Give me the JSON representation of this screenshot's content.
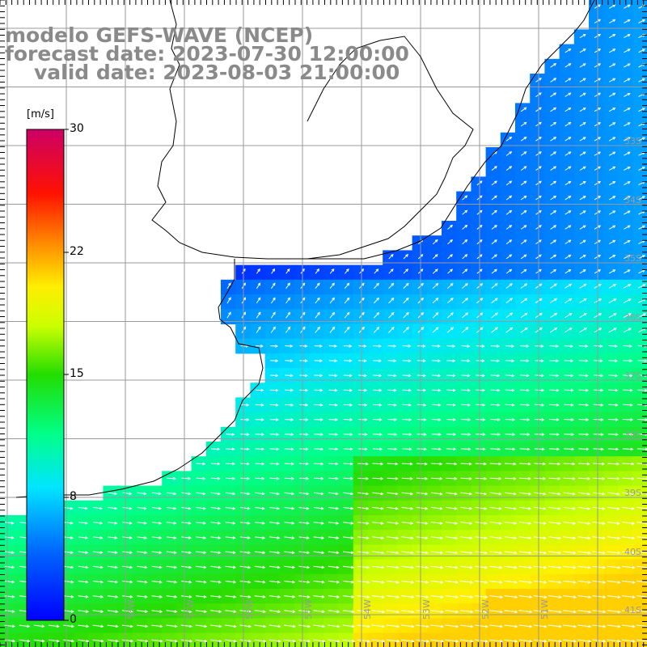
{
  "title": {
    "line1": "modelo GEFS-WAVE (NCEP)",
    "line2": "forecast date: 2023-07-30 12:00:00",
    "line3": "valid date: 2023-08-03 21:00:00"
  },
  "colorbar": {
    "unit": "[m/s]",
    "ticks": [
      "30",
      "22",
      "15",
      "8",
      "0"
    ],
    "tick_values": [
      30,
      22,
      15,
      8,
      0
    ],
    "range": [
      0,
      30
    ],
    "colors": [
      "#0000ff",
      "#0099ff",
      "#00e5ff",
      "#00ff66",
      "#33dd00",
      "#ccff00",
      "#ffff00",
      "#ffaa00",
      "#ff5500",
      "#ff0000",
      "#cc0066"
    ]
  },
  "map": {
    "variable": "wind speed and direction",
    "lat_labels": [
      "33S",
      "34S",
      "35S",
      "36S",
      "37S",
      "38S",
      "39S",
      "40S",
      "41S"
    ],
    "lon_labels": [
      "58W",
      "57W",
      "56W",
      "55W",
      "54W",
      "53W",
      "52W",
      "51W"
    ],
    "lat_range": [
      -41.5,
      -31.0
    ],
    "lon_range": [
      -60.5,
      -49.5
    ],
    "land_color": "#ffffff",
    "grid_color": "#999999",
    "coast_color": "#000000",
    "arrow_color": "#ffffff"
  }
}
